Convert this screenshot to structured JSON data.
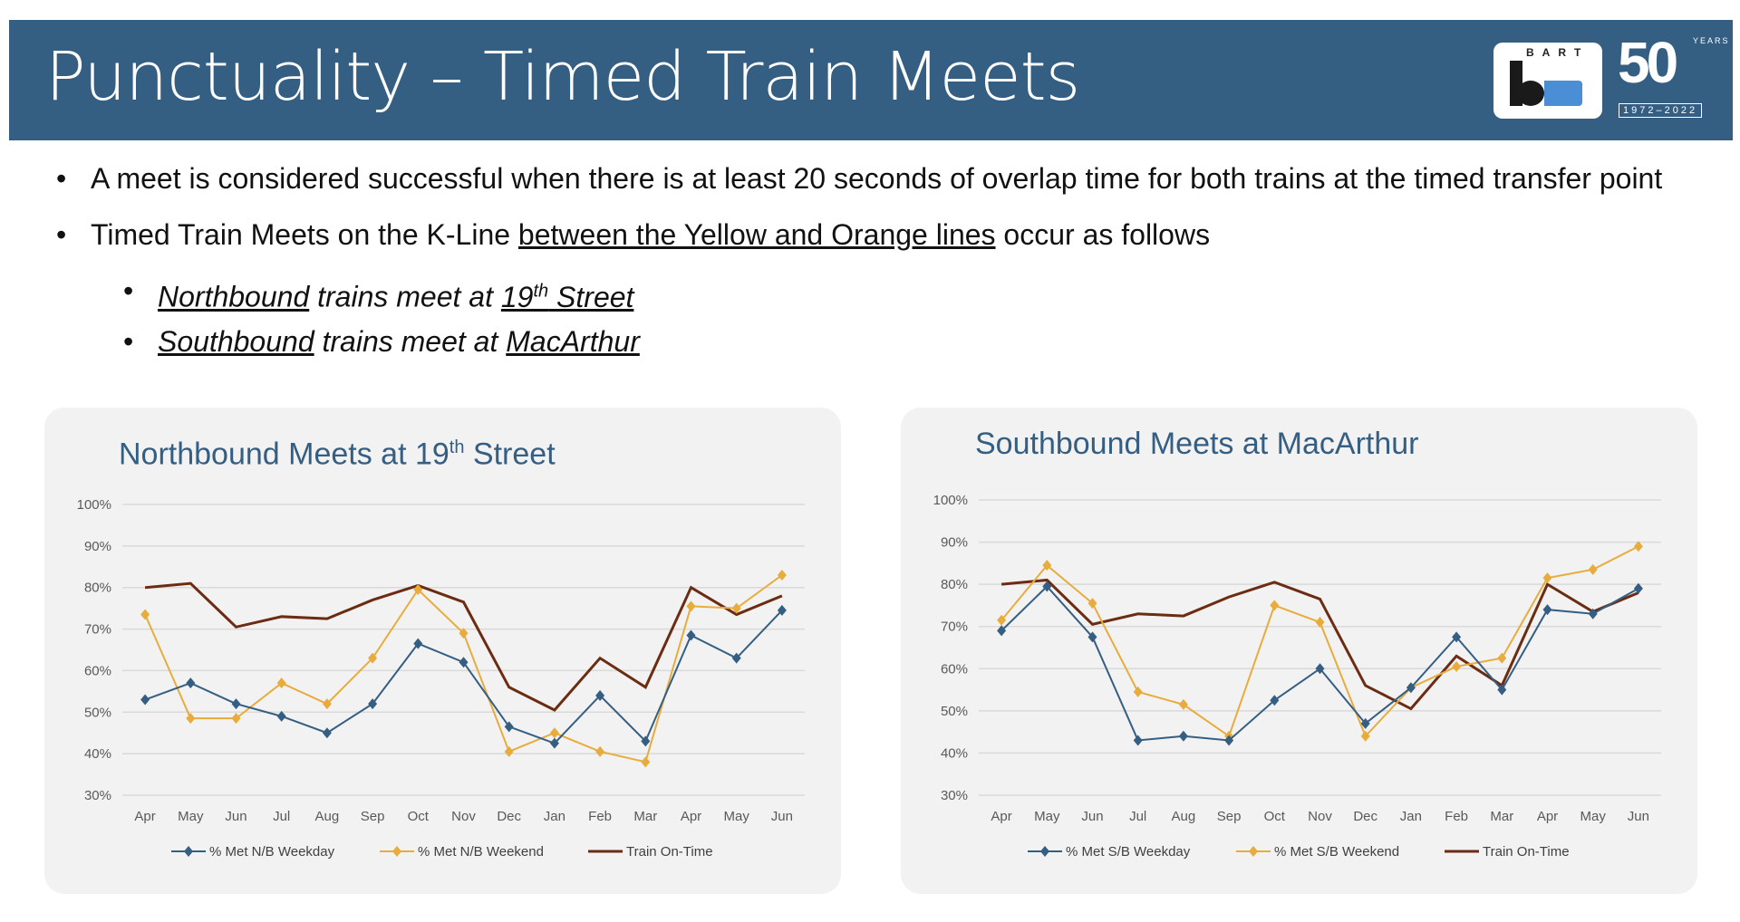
{
  "header": {
    "title": "Punctuality – Timed Train Meets",
    "logo_text": "BART",
    "anniversary": {
      "number": "50",
      "word": "YEARS",
      "range": "1972–2022"
    }
  },
  "bullets": {
    "b1": "A meet is considered successful when there is at least 20 seconds of overlap time for both trains at the timed transfer point",
    "b2_pre": "Timed Train Meets on the K-Line ",
    "b2_link": "between the Yellow and Orange lines",
    "b2_post": " occur as follows",
    "b3_a": "Northbound",
    "b3_b": " trains meet at ",
    "b3_c": "19",
    "b3_sup": "th",
    "b3_d": " Street",
    "b4_a": "Southbound",
    "b4_b": " trains meet at ",
    "b4_c": "MacArthur"
  },
  "colors": {
    "weekday": "#355e83",
    "weekend": "#e8ac3c",
    "ontime": "#6b2c12",
    "header": "#355e83"
  },
  "chart_data": [
    {
      "type": "line",
      "title": "Northbound Meets at 19th Street",
      "title_main": "Northbound Meets at 19",
      "title_sup": "th",
      "title_end": " Street",
      "categories": [
        "Apr",
        "May",
        "Jun",
        "Jul",
        "Aug",
        "Sep",
        "Oct",
        "Nov",
        "Dec",
        "Jan",
        "Feb",
        "Mar",
        "Apr",
        "May",
        "Jun"
      ],
      "ylim": [
        30,
        100
      ],
      "yticks": [
        "30%",
        "40%",
        "50%",
        "60%",
        "70%",
        "80%",
        "90%",
        "100%"
      ],
      "grid": true,
      "legend": "bottom",
      "series": [
        {
          "name": "% Met N/B Weekday",
          "values": [
            53,
            57,
            52,
            49,
            45,
            52,
            66.5,
            62,
            46.5,
            42.5,
            54,
            43,
            68.5,
            63,
            74.5
          ]
        },
        {
          "name": "% Met N/B Weekend",
          "values": [
            73.5,
            48.5,
            48.5,
            57,
            52,
            63,
            79.5,
            69,
            40.5,
            45,
            40.5,
            38,
            75.5,
            75,
            83
          ]
        },
        {
          "name": "Train On-Time",
          "values": [
            80,
            81,
            70.5,
            73,
            72.5,
            77,
            80.5,
            76.5,
            56,
            50.5,
            63,
            56,
            80,
            73.5,
            78
          ]
        }
      ]
    },
    {
      "type": "line",
      "title": "Southbound Meets at MacArthur",
      "title_main": "Southbound Meets at MacArthur",
      "title_sup": "",
      "title_end": "",
      "categories": [
        "Apr",
        "May",
        "Jun",
        "Jul",
        "Aug",
        "Sep",
        "Oct",
        "Nov",
        "Dec",
        "Jan",
        "Feb",
        "Mar",
        "Apr",
        "May",
        "Jun"
      ],
      "ylim": [
        30,
        100
      ],
      "yticks": [
        "30%",
        "40%",
        "50%",
        "60%",
        "70%",
        "80%",
        "90%",
        "100%"
      ],
      "grid": true,
      "legend": "bottom",
      "series": [
        {
          "name": "% Met S/B Weekday",
          "values": [
            69,
            79.5,
            67.5,
            43,
            44,
            43,
            52.5,
            60,
            47,
            55.5,
            67.5,
            55,
            74,
            73,
            79
          ]
        },
        {
          "name": "% Met S/B Weekend",
          "values": [
            71.5,
            84.5,
            75.5,
            54.5,
            51.5,
            44,
            75,
            71,
            44,
            55.5,
            60.5,
            62.5,
            81.5,
            83.5,
            89
          ]
        },
        {
          "name": "Train On-Time",
          "values": [
            80,
            81,
            70.5,
            73,
            72.5,
            77,
            80.5,
            76.5,
            56,
            50.5,
            63,
            56,
            80,
            73.5,
            78
          ]
        }
      ]
    }
  ]
}
